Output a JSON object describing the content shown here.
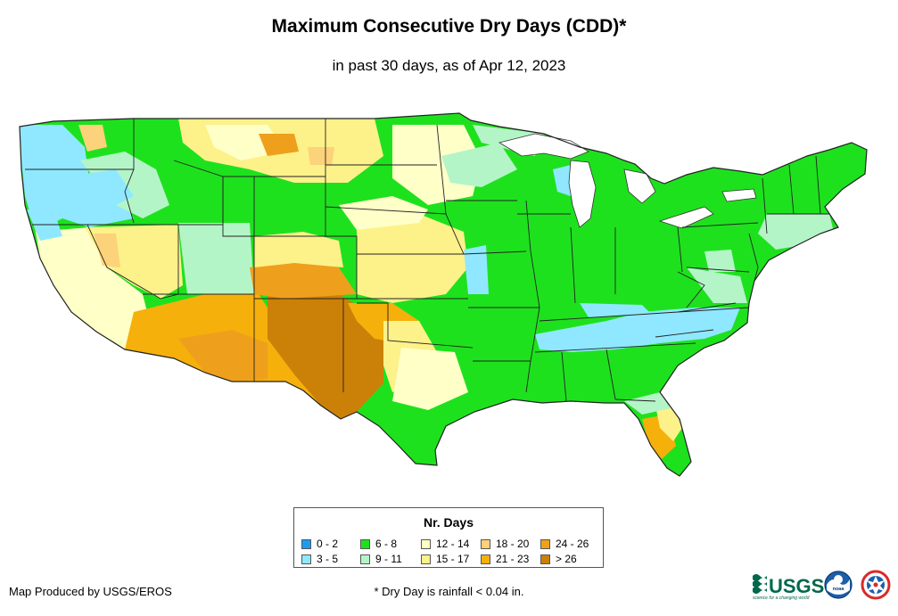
{
  "header": {
    "title": "Maximum Consecutive Dry Days (CDD)*",
    "subtitle": "in past 30 days, as of Apr 12, 2023"
  },
  "legend": {
    "title": "Nr. Days",
    "items": [
      {
        "label": "0 - 2",
        "color": "#1e9bf0"
      },
      {
        "label": "3 - 5",
        "color": "#8fe8ff"
      },
      {
        "label": "6 - 8",
        "color": "#1ee11e"
      },
      {
        "label": "9 - 11",
        "color": "#b4f5c8"
      },
      {
        "label": "12 - 14",
        "color": "#ffffc8"
      },
      {
        "label": "15 - 17",
        "color": "#fdf18a"
      },
      {
        "label": "18 - 20",
        "color": "#fcd27a"
      },
      {
        "label": "21 - 23",
        "color": "#f5b00b"
      },
      {
        "label": "24 - 26",
        "color": "#eea01c"
      },
      {
        "label": "> 26",
        "color": "#cb8008"
      }
    ]
  },
  "footer": {
    "credit": "Map Produced by USGS/EROS",
    "footnote": "* Dry Day is rainfall < 0.04 in."
  },
  "logos": {
    "usgs": "USGS",
    "usgs_tagline": "science for a changing world",
    "noaa": "noaa"
  }
}
